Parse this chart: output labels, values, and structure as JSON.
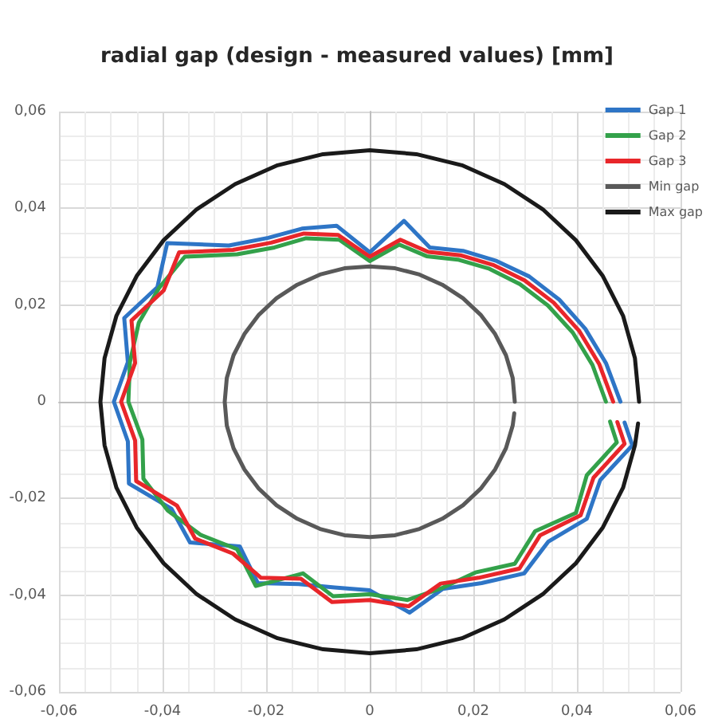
{
  "chart_data": {
    "type": "line",
    "title": "radial gap (design - measured values) [mm]",
    "xlim": [
      -0.06,
      0.06
    ],
    "ylim": [
      -0.06,
      0.06
    ],
    "xticks": [
      {
        "value": -0.06,
        "label": "-0,06"
      },
      {
        "value": -0.04,
        "label": "-0,04"
      },
      {
        "value": -0.02,
        "label": "-0,02"
      },
      0,
      {
        "value": 0.02,
        "label": "0,02"
      },
      {
        "value": 0.04,
        "label": "0,04"
      },
      {
        "value": 0.06,
        "label": "0,06"
      }
    ],
    "yticks": [
      {
        "value": -0.06,
        "label": "-0,06"
      },
      {
        "value": -0.04,
        "label": "-0,04"
      },
      {
        "value": -0.02,
        "label": "-0,02"
      },
      0,
      {
        "value": 0.02,
        "label": "0,02"
      },
      {
        "value": 0.04,
        "label": "0,04"
      },
      {
        "value": 0.06,
        "label": "0,06"
      }
    ],
    "grid": true,
    "legend": "top right",
    "marker": "none",
    "line_style": "solid",
    "series": [
      {
        "name": "Gap 1",
        "color": "#2e75c6",
        "x": [
          0.0484,
          0.0456,
          0.0416,
          0.0366,
          0.0308,
          0.0245,
          0.018,
          0.0116,
          0.0066,
          0,
          -0.0064,
          -0.0131,
          -0.0196,
          -0.0272,
          -0.0391,
          -0.041,
          -0.0474,
          -0.0467,
          -0.0494,
          -0.0467,
          -0.0465,
          -0.0383,
          -0.0347,
          -0.0251,
          -0.0216,
          -0.0137,
          -0.0068,
          0,
          0.0077,
          0.0141,
          0.0216,
          0.0298,
          0.0345,
          0.0419,
          0.0445,
          0.0507,
          0.0492
        ],
        "values": [
          0,
          0.008,
          0.0151,
          0.0211,
          0.0259,
          0.0291,
          0.0312,
          0.0319,
          0.0374,
          0.0309,
          0.0364,
          0.0358,
          0.0339,
          0.0323,
          0.0328,
          0.0237,
          0.0173,
          0.0082,
          0,
          -0.0082,
          -0.0169,
          -0.0221,
          -0.0291,
          -0.0299,
          -0.0375,
          -0.0377,
          -0.0384,
          -0.039,
          -0.0436,
          -0.0387,
          -0.0375,
          -0.0355,
          -0.0289,
          -0.0242,
          -0.0162,
          -0.009,
          -0.0043
        ]
      },
      {
        "name": "Gap 2",
        "color": "#33a14a",
        "x": [
          0.0456,
          0.043,
          0.0392,
          0.0344,
          0.029,
          0.0231,
          0.017,
          0.011,
          0.0057,
          0,
          -0.0059,
          -0.0123,
          -0.0184,
          -0.0256,
          -0.0357,
          -0.0407,
          -0.0446,
          -0.0463,
          -0.0466,
          -0.0439,
          -0.0437,
          -0.039,
          -0.0327,
          -0.0256,
          -0.022,
          -0.0129,
          -0.0071,
          0,
          0.0073,
          0.014,
          0.0204,
          0.028,
          0.0319,
          0.0398,
          0.0419,
          0.0477,
          0.0464
        ],
        "values": [
          0,
          0.0076,
          0.0143,
          0.0199,
          0.0243,
          0.0275,
          0.0294,
          0.0301,
          0.0325,
          0.0291,
          0.0335,
          0.0338,
          0.0319,
          0.0305,
          0.03,
          0.0235,
          0.0163,
          0.0082,
          0,
          -0.0078,
          -0.0159,
          -0.0225,
          -0.0275,
          -0.0305,
          -0.0381,
          -0.0355,
          -0.0402,
          -0.0398,
          -0.041,
          -0.0385,
          -0.0353,
          -0.0335,
          -0.0268,
          -0.023,
          -0.0152,
          -0.0084,
          -0.0041
        ]
      },
      {
        "name": "Gap 3",
        "color": "#e8262a",
        "x": [
          0.047,
          0.0443,
          0.0404,
          0.0355,
          0.0299,
          0.0238,
          0.0175,
          0.0113,
          0.0059,
          0,
          -0.0061,
          -0.0127,
          -0.019,
          -0.0264,
          -0.0368,
          -0.0398,
          -0.046,
          -0.0453,
          -0.048,
          -0.0453,
          -0.0451,
          -0.0372,
          -0.0337,
          -0.0264,
          -0.021,
          -0.0133,
          -0.0073,
          0,
          0.0075,
          0.0137,
          0.021,
          0.0289,
          0.0329,
          0.0407,
          0.0432,
          0.0492,
          0.0478
        ],
        "values": [
          0,
          0.0078,
          0.0147,
          0.0205,
          0.0251,
          0.0283,
          0.0303,
          0.031,
          0.0335,
          0.03,
          0.0345,
          0.0348,
          0.0329,
          0.0314,
          0.0309,
          0.023,
          0.0168,
          0.008,
          0,
          -0.008,
          -0.0164,
          -0.0215,
          -0.0283,
          -0.0314,
          -0.0364,
          -0.0366,
          -0.0414,
          -0.041,
          -0.0423,
          -0.0376,
          -0.0364,
          -0.0345,
          -0.0276,
          -0.0235,
          -0.0157,
          -0.0087,
          -0.0042
        ]
      },
      {
        "name": "Min gap",
        "color": "#595959",
        "x": [
          0.028,
          0.0276,
          0.0263,
          0.0242,
          0.0214,
          0.018,
          0.014,
          0.0096,
          0.0049,
          0,
          -0.0049,
          -0.0096,
          -0.014,
          -0.018,
          -0.0214,
          -0.0242,
          -0.0263,
          -0.0276,
          -0.028,
          -0.0276,
          -0.0263,
          -0.0242,
          -0.0214,
          -0.018,
          -0.014,
          -0.0096,
          -0.0049,
          0,
          0.0049,
          0.0096,
          0.014,
          0.018,
          0.0214,
          0.0242,
          0.0263,
          0.0276,
          0.0279
        ],
        "values": [
          0,
          0.0049,
          0.0096,
          0.014,
          0.018,
          0.0214,
          0.0242,
          0.0263,
          0.0276,
          0.028,
          0.0276,
          0.0263,
          0.0242,
          0.0214,
          0.018,
          0.014,
          0.0096,
          0.0049,
          0,
          -0.0049,
          -0.0096,
          -0.014,
          -0.018,
          -0.0214,
          -0.0242,
          -0.0263,
          -0.0276,
          -0.028,
          -0.0276,
          -0.0263,
          -0.0242,
          -0.0214,
          -0.018,
          -0.014,
          -0.0096,
          -0.0049,
          -0.0024
        ]
      },
      {
        "name": "Max gap",
        "color": "#1a1a1a",
        "x": [
          0.052,
          0.0512,
          0.0489,
          0.045,
          0.0398,
          0.0334,
          0.026,
          0.0178,
          0.009,
          0,
          -0.009,
          -0.0178,
          -0.026,
          -0.0334,
          -0.0398,
          -0.045,
          -0.0489,
          -0.0512,
          -0.052,
          -0.0512,
          -0.0489,
          -0.045,
          -0.0398,
          -0.0334,
          -0.026,
          -0.0178,
          -0.009,
          0,
          0.009,
          0.0178,
          0.026,
          0.0334,
          0.0398,
          0.045,
          0.0489,
          0.0512,
          0.0518
        ],
        "values": [
          0,
          0.009,
          0.0178,
          0.026,
          0.0334,
          0.0398,
          0.045,
          0.0489,
          0.0512,
          0.052,
          0.0512,
          0.0489,
          0.045,
          0.0398,
          0.0334,
          0.026,
          0.0178,
          0.009,
          0,
          -0.009,
          -0.0178,
          -0.026,
          -0.0334,
          -0.0398,
          -0.045,
          -0.0489,
          -0.0512,
          -0.052,
          -0.0512,
          -0.0489,
          -0.045,
          -0.0398,
          -0.0334,
          -0.026,
          -0.0178,
          -0.009,
          -0.0045
        ]
      }
    ]
  }
}
